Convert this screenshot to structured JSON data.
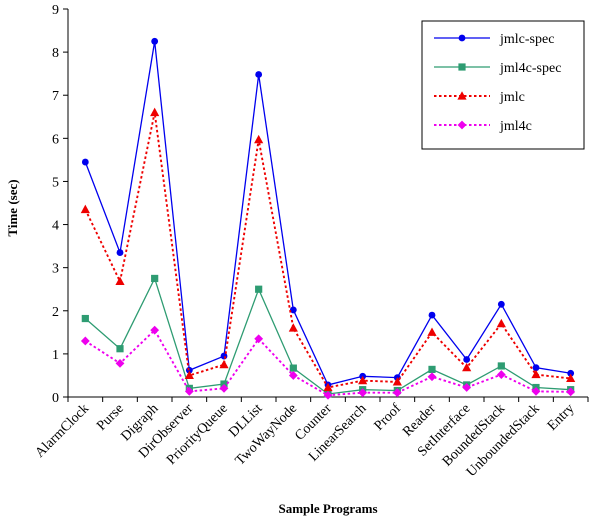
{
  "chart_data": {
    "type": "line",
    "xlabel": "Sample Programs",
    "ylabel": "Time (sec)",
    "ylim": [
      0,
      9
    ],
    "yticks": [
      0,
      1,
      2,
      3,
      4,
      5,
      6,
      7,
      8,
      9
    ],
    "grid": false,
    "legend_position": "top-right",
    "categories": [
      "AlarmClock",
      "Purse",
      "Digraph",
      "DirObserver",
      "PriorityQueue",
      "DLList",
      "TwoWayNode",
      "Counter",
      "LinearSearch",
      "Proof",
      "Reader",
      "SetInterface",
      "BoundedStack",
      "UnboundedStack",
      "Entry"
    ],
    "series": [
      {
        "name": "jmlc-spec",
        "color": "#0000ee",
        "line_style": "solid",
        "marker": "circle",
        "values": [
          5.45,
          3.35,
          8.25,
          0.62,
          0.95,
          7.48,
          2.02,
          0.28,
          0.48,
          0.45,
          1.9,
          0.87,
          2.15,
          0.68,
          0.55
        ]
      },
      {
        "name": "jml4c-spec",
        "color": "#2e9c72",
        "line_style": "solid",
        "marker": "square",
        "values": [
          1.82,
          1.12,
          2.75,
          0.2,
          0.3,
          2.5,
          0.67,
          0.07,
          0.17,
          0.15,
          0.64,
          0.28,
          0.72,
          0.22,
          0.17
        ]
      },
      {
        "name": "jmlc",
        "color": "#ee0000",
        "line_style": "dotted",
        "marker": "triangle",
        "values": [
          4.35,
          2.68,
          6.6,
          0.5,
          0.75,
          5.97,
          1.6,
          0.22,
          0.38,
          0.35,
          1.5,
          0.68,
          1.7,
          0.52,
          0.43
        ]
      },
      {
        "name": "jml4c",
        "color": "#ee00ee",
        "line_style": "dotted",
        "marker": "diamond",
        "values": [
          1.3,
          0.78,
          1.55,
          0.13,
          0.2,
          1.35,
          0.5,
          0.04,
          0.1,
          0.1,
          0.47,
          0.22,
          0.52,
          0.13,
          0.12
        ]
      }
    ]
  }
}
